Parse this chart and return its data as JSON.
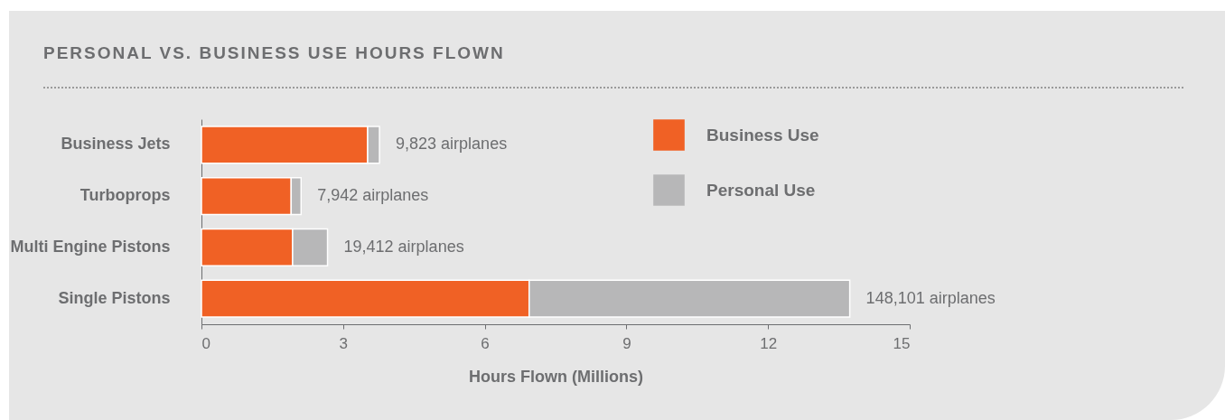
{
  "chart_data": {
    "type": "bar",
    "orientation": "horizontal",
    "stacked": true,
    "title": "PERSONAL VS. BUSINESS USE HOURS FLOWN",
    "xlabel": "Hours Flown (Millions)",
    "categories": [
      "Business Jets",
      "Turboprops",
      "Multi Engine Pistons",
      "Single Pistons"
    ],
    "series": [
      {
        "name": "Business Use",
        "color": "#f06125",
        "values": [
          3.52,
          1.9,
          1.93,
          6.94
        ]
      },
      {
        "name": "Personal Use",
        "color": "#b7b7b8",
        "values": [
          0.25,
          0.21,
          0.74,
          6.79
        ]
      }
    ],
    "xlim": [
      0,
      15
    ],
    "xticks": [
      0,
      3,
      6,
      9,
      12,
      15
    ],
    "grid": false,
    "legend": "top right",
    "annotations": [
      {
        "text": "9,823 airplanes",
        "x": 3.77,
        "y": "Business Jets"
      },
      {
        "text": "7,942 airplanes",
        "x": 2.11,
        "y": "Turboprops"
      },
      {
        "text": "19,412 airplanes",
        "x": 2.67,
        "y": "Multi Engine Pistons"
      },
      {
        "text": "148,101 airplanes",
        "x": 13.73,
        "y": "Single Pistons"
      }
    ]
  }
}
